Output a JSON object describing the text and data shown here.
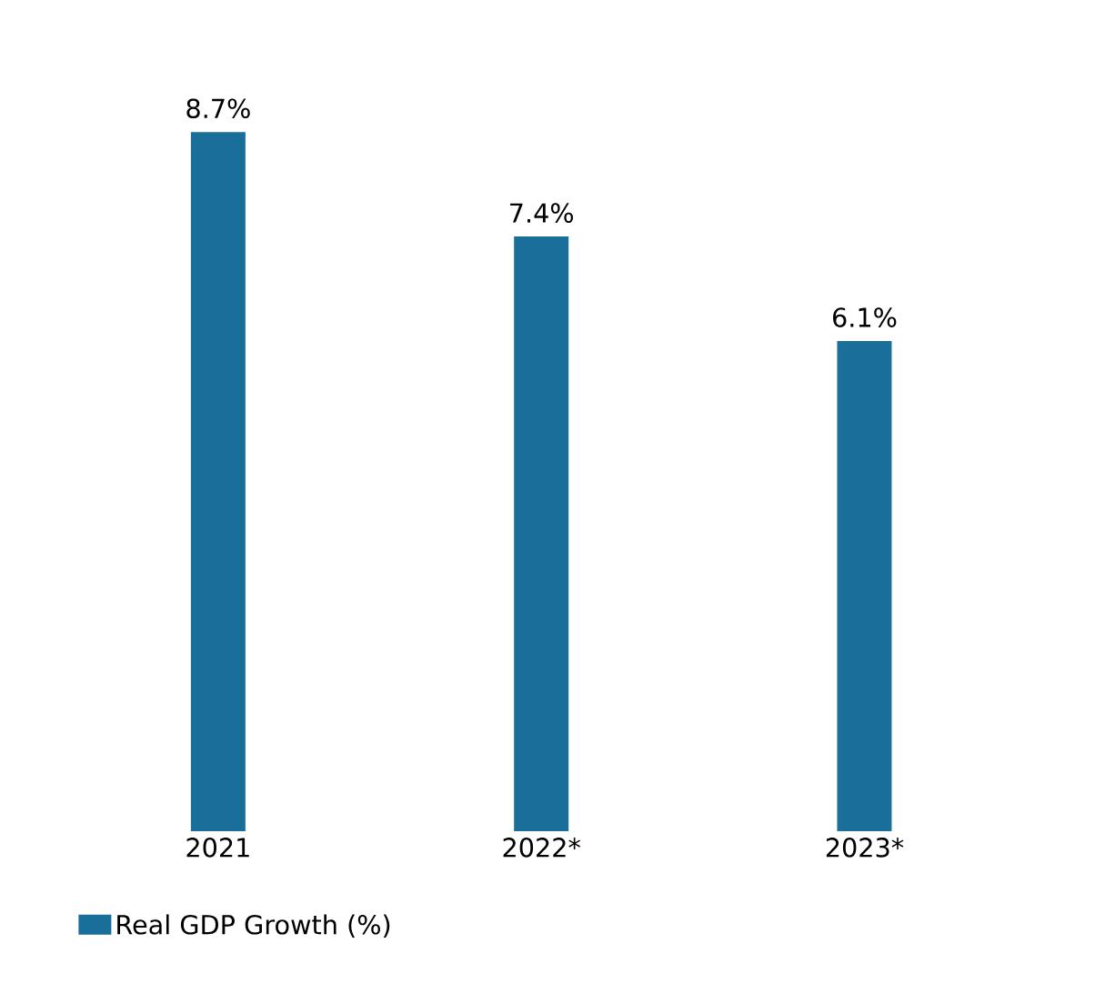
{
  "chart_data": {
    "type": "bar",
    "categories": [
      "2021",
      "2022*",
      "2023*"
    ],
    "series": [
      {
        "name": "Real GDP Growth (%)",
        "color": "#1a6e9a",
        "values": [
          8.7,
          7.4,
          6.1
        ],
        "value_labels": [
          "8.7%",
          "7.4%",
          "6.1%"
        ]
      }
    ],
    "legend": "bottom left"
  }
}
